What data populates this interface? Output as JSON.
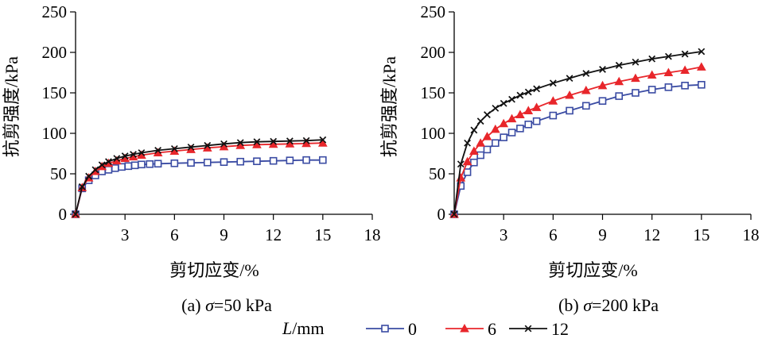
{
  "chart_data": [
    {
      "type": "line",
      "caption_prefix": "(a) ",
      "caption_sigma": "σ",
      "caption_value": "=50 kPa",
      "xlabel": "剪切应变/%",
      "ylabel": "抗剪强度/kPa",
      "xlim": [
        0,
        18
      ],
      "ylim": [
        0,
        250
      ],
      "xticks": [
        3,
        6,
        9,
        12,
        15,
        18
      ],
      "yticks": [
        0,
        50,
        100,
        150,
        200,
        250
      ],
      "grid": false,
      "series": [
        {
          "name": "0",
          "x": [
            0,
            0.4,
            0.8,
            1.2,
            1.6,
            2.0,
            2.4,
            2.8,
            3.2,
            3.6,
            4.0,
            4.5,
            5.0,
            6,
            7,
            8,
            9,
            10,
            11,
            12,
            13,
            14,
            15
          ],
          "y": [
            0,
            32,
            42,
            48,
            53,
            55,
            57,
            58.5,
            59.5,
            60.5,
            61.5,
            62,
            62.5,
            63,
            63.5,
            64,
            64.5,
            65,
            65.5,
            66,
            66.5,
            67,
            67
          ]
        },
        {
          "name": "6",
          "x": [
            0,
            0.4,
            0.8,
            1.2,
            1.6,
            2.0,
            2.5,
            3.0,
            3.5,
            4.0,
            5,
            6,
            7,
            8,
            9,
            10,
            11,
            12,
            13,
            14,
            15
          ],
          "y": [
            0,
            33,
            45,
            53,
            59,
            63,
            66,
            69,
            71,
            73,
            76,
            78,
            80,
            82,
            83.5,
            85,
            86,
            86.5,
            87,
            87.5,
            88
          ]
        },
        {
          "name": "12",
          "x": [
            0,
            0.4,
            0.8,
            1.2,
            1.6,
            2.0,
            2.5,
            3.0,
            3.5,
            4.0,
            5,
            6,
            7,
            8,
            9,
            10,
            11,
            12,
            13,
            14,
            15
          ],
          "y": [
            0,
            34,
            47,
            55,
            61,
            65,
            69,
            72,
            74,
            76,
            79,
            81,
            83,
            85,
            87,
            88.5,
            89.5,
            90,
            90.5,
            91,
            92
          ]
        }
      ]
    },
    {
      "type": "line",
      "caption_prefix": "(b) ",
      "caption_sigma": "σ",
      "caption_value": "=200 kPa",
      "xlabel": "剪切应变/%",
      "ylabel": "抗剪强度/kPa",
      "xlim": [
        0,
        18
      ],
      "ylim": [
        0,
        250
      ],
      "xticks": [
        3,
        6,
        9,
        12,
        15,
        18
      ],
      "yticks": [
        0,
        50,
        100,
        150,
        200,
        250
      ],
      "grid": false,
      "series": [
        {
          "name": "0",
          "x": [
            0,
            0.4,
            0.8,
            1.2,
            1.6,
            2.0,
            2.5,
            3.0,
            3.5,
            4.0,
            4.5,
            5,
            6,
            7,
            8,
            9,
            10,
            11,
            12,
            13,
            14,
            15
          ],
          "y": [
            0,
            35,
            52,
            64,
            73,
            80,
            88,
            95,
            101,
            106,
            111,
            115,
            122,
            128,
            134,
            140,
            146,
            150,
            154,
            157,
            159,
            160
          ]
        },
        {
          "name": "6",
          "x": [
            0,
            0.4,
            0.8,
            1.2,
            1.6,
            2.0,
            2.5,
            3.0,
            3.5,
            4.0,
            4.5,
            5,
            6,
            7,
            8,
            9,
            10,
            11,
            12,
            13,
            14,
            15
          ],
          "y": [
            0,
            45,
            65,
            78,
            88,
            96,
            105,
            112,
            118,
            123,
            128,
            132,
            140,
            147,
            153,
            159,
            164,
            168,
            172,
            175,
            178,
            182
          ]
        },
        {
          "name": "12",
          "x": [
            0,
            0.4,
            0.8,
            1.2,
            1.6,
            2.0,
            2.5,
            3.0,
            3.5,
            4.0,
            4.5,
            5,
            6,
            7,
            8,
            9,
            10,
            11,
            12,
            13,
            14,
            15
          ],
          "y": [
            0,
            62,
            88,
            104,
            115,
            123,
            131,
            137,
            142,
            147,
            151,
            155,
            162,
            168,
            174,
            179,
            184,
            188,
            192,
            195,
            198,
            201
          ]
        }
      ]
    }
  ],
  "legend": {
    "title_italic": "L",
    "title_rest": "/mm",
    "entries": [
      "0",
      "6",
      "12"
    ]
  },
  "colors": {
    "series_0": "#3a4ba3",
    "series_6": "#e8262b",
    "series_12": "#111111",
    "axis": "#000000"
  }
}
